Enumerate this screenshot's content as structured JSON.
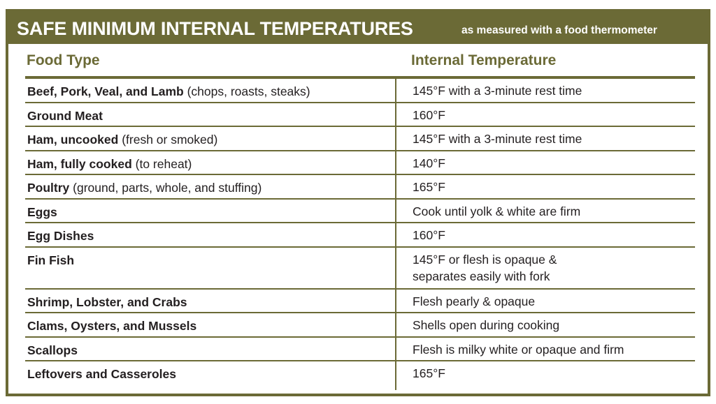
{
  "title": "SAFE MINIMUM INTERNAL TEMPERATURES",
  "subtitle": "as measured with a food thermometer",
  "colors": {
    "accent": "#6b6a36",
    "text": "#231f20"
  },
  "columns": [
    "Food Type",
    "Internal Temperature"
  ],
  "rows": [
    {
      "food": "Beef, Pork, Veal, and Lamb",
      "note": " (chops, roasts, steaks)",
      "temp": "145°F with a 3-minute rest time"
    },
    {
      "food": "Ground Meat",
      "note": "",
      "temp": "160°F"
    },
    {
      "food": "Ham, uncooked",
      "note": "(fresh or smoked)",
      "temp": "145°F with a 3-minute rest time"
    },
    {
      "food": "Ham, fully cooked",
      "note": " (to reheat)",
      "temp": "140°F"
    },
    {
      "food": "Poultry",
      "note": "(ground, parts, whole, and stuffing)",
      "temp": "165°F"
    },
    {
      "food": "Eggs",
      "note": "",
      "temp": "Cook until yolk & white are firm"
    },
    {
      "food": "Egg Dishes",
      "note": "",
      "temp": "160°F"
    },
    {
      "food": "Fin Fish",
      "note": "",
      "temp": "145°F or flesh is opaque &",
      "temp2": "separates easily with fork"
    },
    {
      "food": "Shrimp, Lobster, and Crabs",
      "note": "",
      "temp": "Flesh pearly & opaque"
    },
    {
      "food": "Clams, Oysters, and Mussels",
      "note": "",
      "temp": "Shells open during cooking"
    },
    {
      "food": "Scallops",
      "note": "",
      "temp": "Flesh is milky white or opaque and firm"
    },
    {
      "food": "Leftovers and Casseroles",
      "note": "",
      "temp": "165°F"
    }
  ]
}
